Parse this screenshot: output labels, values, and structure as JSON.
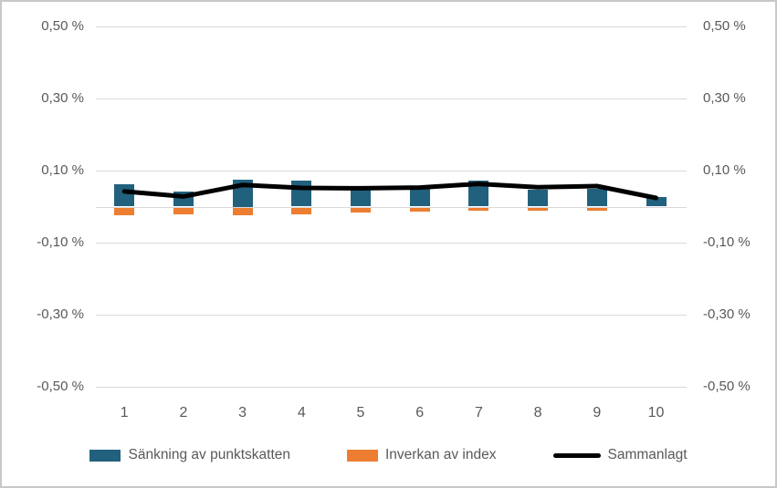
{
  "chart_data": {
    "type": "bar",
    "subtype": "combo-stacked-bar-with-line",
    "title": "",
    "xlabel": "",
    "ylabel": "",
    "categories": [
      "1",
      "2",
      "3",
      "4",
      "5",
      "6",
      "7",
      "8",
      "9",
      "10"
    ],
    "series": [
      {
        "name": "Sänkning av punktskatten",
        "type": "bar",
        "color": "#21617e",
        "values": [
          0.062,
          0.042,
          0.075,
          0.071,
          0.049,
          0.049,
          0.073,
          0.047,
          0.049,
          0.027
        ]
      },
      {
        "name": "Inverkan av index",
        "type": "bar",
        "color": "#ed7d31",
        "values": [
          -0.022,
          -0.02,
          -0.022,
          -0.018,
          -0.014,
          -0.012,
          -0.01,
          -0.008,
          -0.008,
          0.0
        ]
      },
      {
        "name": "Sammanlagt",
        "type": "line",
        "color": "#000000",
        "values": [
          0.042,
          0.028,
          0.06,
          0.052,
          0.051,
          0.053,
          0.063,
          0.054,
          0.057,
          0.024
        ]
      }
    ],
    "ylim": [
      -0.5,
      0.5
    ],
    "y_ticks": [
      {
        "value": 0.5,
        "label": "0,50 %"
      },
      {
        "value": 0.3,
        "label": "0,30 %"
      },
      {
        "value": 0.1,
        "label": "0,10 %"
      },
      {
        "value": -0.1,
        "label": "-0,10 %"
      },
      {
        "value": -0.3,
        "label": "-0,30 %"
      },
      {
        "value": -0.5,
        "label": "-0,50 %"
      }
    ],
    "zero_line": true,
    "grid": true,
    "dual_y_axis": true,
    "legend_position": "bottom"
  },
  "legend": {
    "items": [
      {
        "label": "Sänkning av punktskatten",
        "color": "#21617e",
        "marker": "bar-swatch"
      },
      {
        "label": "Inverkan av index",
        "color": "#ed7d31",
        "marker": "bar-swatch"
      },
      {
        "label": "Sammanlagt",
        "color": "#000000",
        "marker": "line"
      }
    ]
  },
  "colors": {
    "grid": "#d9d9d9",
    "axis_text": "#595959",
    "border": "#c9c7c7",
    "background": "#ffffff"
  }
}
